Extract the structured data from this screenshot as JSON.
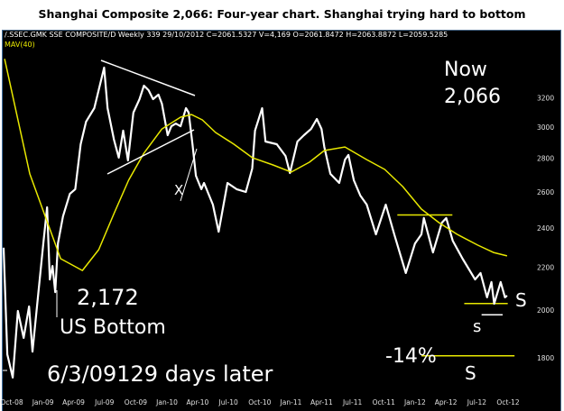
{
  "title": "Shanghai Composite 2,066: Four-year chart. Shanghai trying hard to bottom",
  "header_info": "/.SSEC.GMK SSE COMPOSITE/D Weekly 339 29/10/2012 C=2061.5327 V=4,169 O=2061.8472 H=2063.8872 L=2059.5285",
  "mav_label": "MAV(40)",
  "annotations": {
    "now": "Now",
    "now_value": "2,066",
    "low_value": "2,172",
    "us_bottom": "US Bottom",
    "date_note": "6/3/09129 days later",
    "x_mark": "X",
    "s_upper": "S",
    "s_middle": "s",
    "s_lower": "S",
    "pct_drop": "-14%"
  },
  "colors": {
    "background": "#000000",
    "price": "#ffffff",
    "ma": "#e8e800",
    "support": "#e8e800"
  },
  "chart_data": {
    "type": "line",
    "title": "Shanghai Composite 2,066: Four-year chart. Shanghai trying hard to bottom",
    "y_scale": "log",
    "ylim": [
      1750,
      3600
    ],
    "y_ticks": [
      1800,
      2000,
      2200,
      2400,
      2600,
      2800,
      3000,
      3200
    ],
    "x_ticks": [
      {
        "date": "2008-10-01",
        "label": "Oct-08"
      },
      {
        "date": "2009-01-01",
        "label": "Jan-09"
      },
      {
        "date": "2009-04-01",
        "label": "Apr-09"
      },
      {
        "date": "2009-07-01",
        "label": "Jul-09"
      },
      {
        "date": "2009-10-01",
        "label": "Oct-09"
      },
      {
        "date": "2010-01-01",
        "label": "Jan-10"
      },
      {
        "date": "2010-04-01",
        "label": "Apr-10"
      },
      {
        "date": "2010-07-01",
        "label": "Jul-10"
      },
      {
        "date": "2010-10-01",
        "label": "Oct-10"
      },
      {
        "date": "2011-01-01",
        "label": "Jan-11"
      },
      {
        "date": "2011-04-01",
        "label": "Apr-11"
      },
      {
        "date": "2011-07-01",
        "label": "Jul-11"
      },
      {
        "date": "2011-10-01",
        "label": "Oct-11"
      },
      {
        "date": "2012-01-01",
        "label": "Jan-12"
      },
      {
        "date": "2012-04-01",
        "label": "Apr-12"
      },
      {
        "date": "2012-07-01",
        "label": "Jul-12"
      },
      {
        "date": "2012-10-01",
        "label": "Oct-12"
      }
    ],
    "grid": false,
    "series": [
      {
        "key": "price",
        "points": [
          [
            "2008-09-07",
            2297
          ],
          [
            "2008-09-18",
            1814
          ],
          [
            "2008-10-04",
            1723
          ],
          [
            "2008-10-19",
            1997
          ],
          [
            "2008-11-05",
            1881
          ],
          [
            "2008-11-21",
            2017
          ],
          [
            "2008-12-01",
            1825
          ],
          [
            "2008-12-17",
            2058
          ],
          [
            "2009-01-02",
            2319
          ],
          [
            "2009-01-13",
            2512
          ],
          [
            "2009-01-21",
            2141
          ],
          [
            "2009-01-29",
            2206
          ],
          [
            "2009-02-06",
            2082
          ],
          [
            "2009-02-14",
            2319
          ],
          [
            "2009-03-01",
            2462
          ],
          [
            "2009-03-21",
            2588
          ],
          [
            "2009-04-06",
            2615
          ],
          [
            "2009-04-22",
            2889
          ],
          [
            "2009-05-08",
            3037
          ],
          [
            "2009-06-01",
            3129
          ],
          [
            "2009-06-30",
            3423
          ],
          [
            "2009-07-10",
            3129
          ],
          [
            "2009-07-29",
            2918
          ],
          [
            "2009-08-12",
            2804
          ],
          [
            "2009-08-25",
            2977
          ],
          [
            "2009-09-08",
            2787
          ],
          [
            "2009-09-24",
            3098
          ],
          [
            "2009-10-12",
            3192
          ],
          [
            "2009-10-25",
            3289
          ],
          [
            "2009-11-08",
            3256
          ],
          [
            "2009-11-21",
            3192
          ],
          [
            "2009-12-07",
            3224
          ],
          [
            "2009-12-17",
            3160
          ],
          [
            "2010-01-03",
            2947
          ],
          [
            "2010-01-14",
            3006
          ],
          [
            "2010-01-27",
            3024
          ],
          [
            "2010-02-10",
            3006
          ],
          [
            "2010-02-26",
            3129
          ],
          [
            "2010-03-06",
            3098
          ],
          [
            "2010-03-17",
            2889
          ],
          [
            "2010-03-27",
            2694
          ],
          [
            "2010-04-12",
            2615
          ],
          [
            "2010-04-20",
            2651
          ],
          [
            "2010-05-16",
            2527
          ],
          [
            "2010-06-02",
            2380
          ],
          [
            "2010-06-28",
            2651
          ],
          [
            "2010-07-25",
            2615
          ],
          [
            "2010-08-21",
            2599
          ],
          [
            "2010-09-09",
            2737
          ],
          [
            "2010-09-17",
            2977
          ],
          [
            "2010-10-08",
            3129
          ],
          [
            "2010-10-18",
            2906
          ],
          [
            "2010-11-20",
            2889
          ],
          [
            "2010-12-16",
            2815
          ],
          [
            "2010-12-29",
            2710
          ],
          [
            "2011-01-20",
            2906
          ],
          [
            "2011-02-08",
            2947
          ],
          [
            "2011-03-01",
            2988
          ],
          [
            "2011-03-18",
            3055
          ],
          [
            "2011-04-01",
            2988
          ],
          [
            "2011-04-09",
            2871
          ],
          [
            "2011-04-27",
            2705
          ],
          [
            "2011-05-23",
            2651
          ],
          [
            "2011-06-09",
            2792
          ],
          [
            "2011-06-19",
            2821
          ],
          [
            "2011-07-05",
            2667
          ],
          [
            "2011-07-24",
            2578
          ],
          [
            "2011-08-12",
            2527
          ],
          [
            "2011-09-08",
            2366
          ],
          [
            "2011-10-07",
            2527
          ],
          [
            "2011-11-01",
            2366
          ],
          [
            "2011-12-05",
            2172
          ],
          [
            "2012-01-01",
            2319
          ],
          [
            "2012-01-20",
            2366
          ],
          [
            "2012-01-27",
            2453
          ],
          [
            "2012-02-23",
            2273
          ],
          [
            "2012-03-20",
            2428
          ],
          [
            "2012-04-02",
            2453
          ],
          [
            "2012-04-21",
            2333
          ],
          [
            "2012-05-20",
            2242
          ],
          [
            "2012-06-26",
            2141
          ],
          [
            "2012-07-12",
            2172
          ],
          [
            "2012-07-31",
            2058
          ],
          [
            "2012-08-13",
            2129
          ],
          [
            "2012-08-21",
            2029
          ],
          [
            "2012-09-09",
            2129
          ],
          [
            "2012-09-22",
            2058
          ],
          [
            "2012-09-28",
            2066
          ]
        ]
      },
      {
        "key": "ma",
        "name": "MAV(40)",
        "points": [
          [
            "2008-09-10",
            3490
          ],
          [
            "2008-11-23",
            2705
          ],
          [
            "2009-02-22",
            2242
          ],
          [
            "2009-04-27",
            2184
          ],
          [
            "2009-06-14",
            2287
          ],
          [
            "2009-07-29",
            2477
          ],
          [
            "2009-09-10",
            2667
          ],
          [
            "2009-10-25",
            2832
          ],
          [
            "2009-12-17",
            2988
          ],
          [
            "2010-02-10",
            3067
          ],
          [
            "2010-03-14",
            3085
          ],
          [
            "2010-04-15",
            3049
          ],
          [
            "2010-05-24",
            2965
          ],
          [
            "2010-07-17",
            2889
          ],
          [
            "2010-09-09",
            2804
          ],
          [
            "2010-11-09",
            2759
          ],
          [
            "2011-01-02",
            2716
          ],
          [
            "2011-02-24",
            2776
          ],
          [
            "2011-04-09",
            2849
          ],
          [
            "2011-06-09",
            2871
          ],
          [
            "2011-08-12",
            2792
          ],
          [
            "2011-10-04",
            2732
          ],
          [
            "2011-11-26",
            2630
          ],
          [
            "2012-01-20",
            2502
          ],
          [
            "2012-03-12",
            2428
          ],
          [
            "2012-05-04",
            2366
          ],
          [
            "2012-07-04",
            2310
          ],
          [
            "2012-08-19",
            2273
          ],
          [
            "2012-09-28",
            2256
          ]
        ]
      }
    ],
    "reference_lines": [
      {
        "kind": "resistance",
        "value": 2470,
        "from": "2011-11-10",
        "to": "2012-04-20",
        "color": "#e8e800"
      },
      {
        "kind": "support",
        "value": 2030,
        "from": "2012-05-25",
        "to": "2012-09-30",
        "color": "#e8e800"
      },
      {
        "kind": "support",
        "value": 1980,
        "from": "2012-07-15",
        "to": "2012-09-15",
        "color": "#ffffff"
      },
      {
        "kind": "support",
        "value": 1808,
        "from": "2012-01-20",
        "to": "2012-10-20",
        "color": "#e8e800"
      }
    ]
  }
}
